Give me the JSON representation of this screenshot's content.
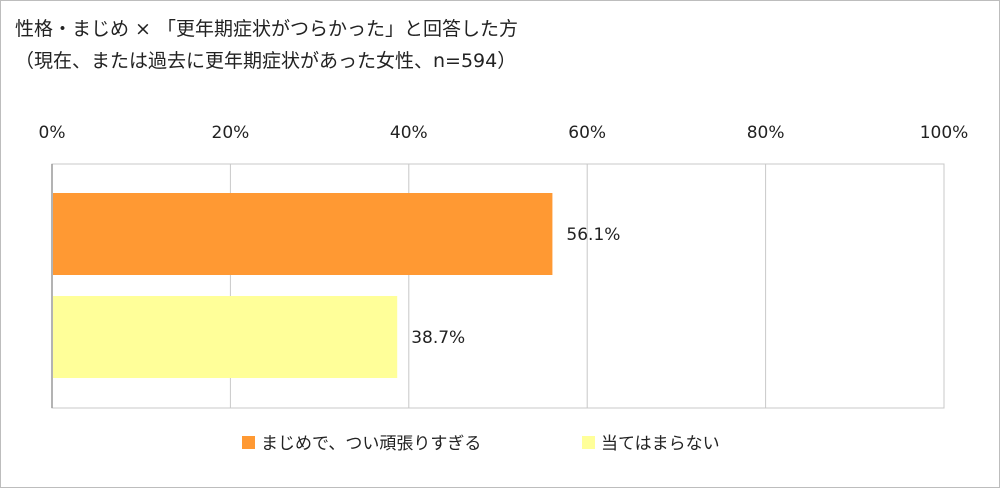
{
  "chart_data": {
    "type": "bar",
    "orientation": "horizontal",
    "title": "性格・まじめ × 「更年期症状がつらかった」と回答した方",
    "subtitle": "（現在、または過去に更年期症状があった女性、n=594）",
    "xlim": [
      0,
      100
    ],
    "x_ticks": [
      "0%",
      "20%",
      "40%",
      "60%",
      "80%",
      "100%"
    ],
    "x_tick_values": [
      0,
      20,
      40,
      60,
      80,
      100
    ],
    "grid": true,
    "legend_position": "bottom",
    "series": [
      {
        "name": "まじめで、つい頑張りすぎる",
        "value": 56.1,
        "label": "56.1%",
        "color": "#ff9933"
      },
      {
        "name": "当てはまらない",
        "value": 38.7,
        "label": "38.7%",
        "color": "#ffff99"
      }
    ]
  }
}
